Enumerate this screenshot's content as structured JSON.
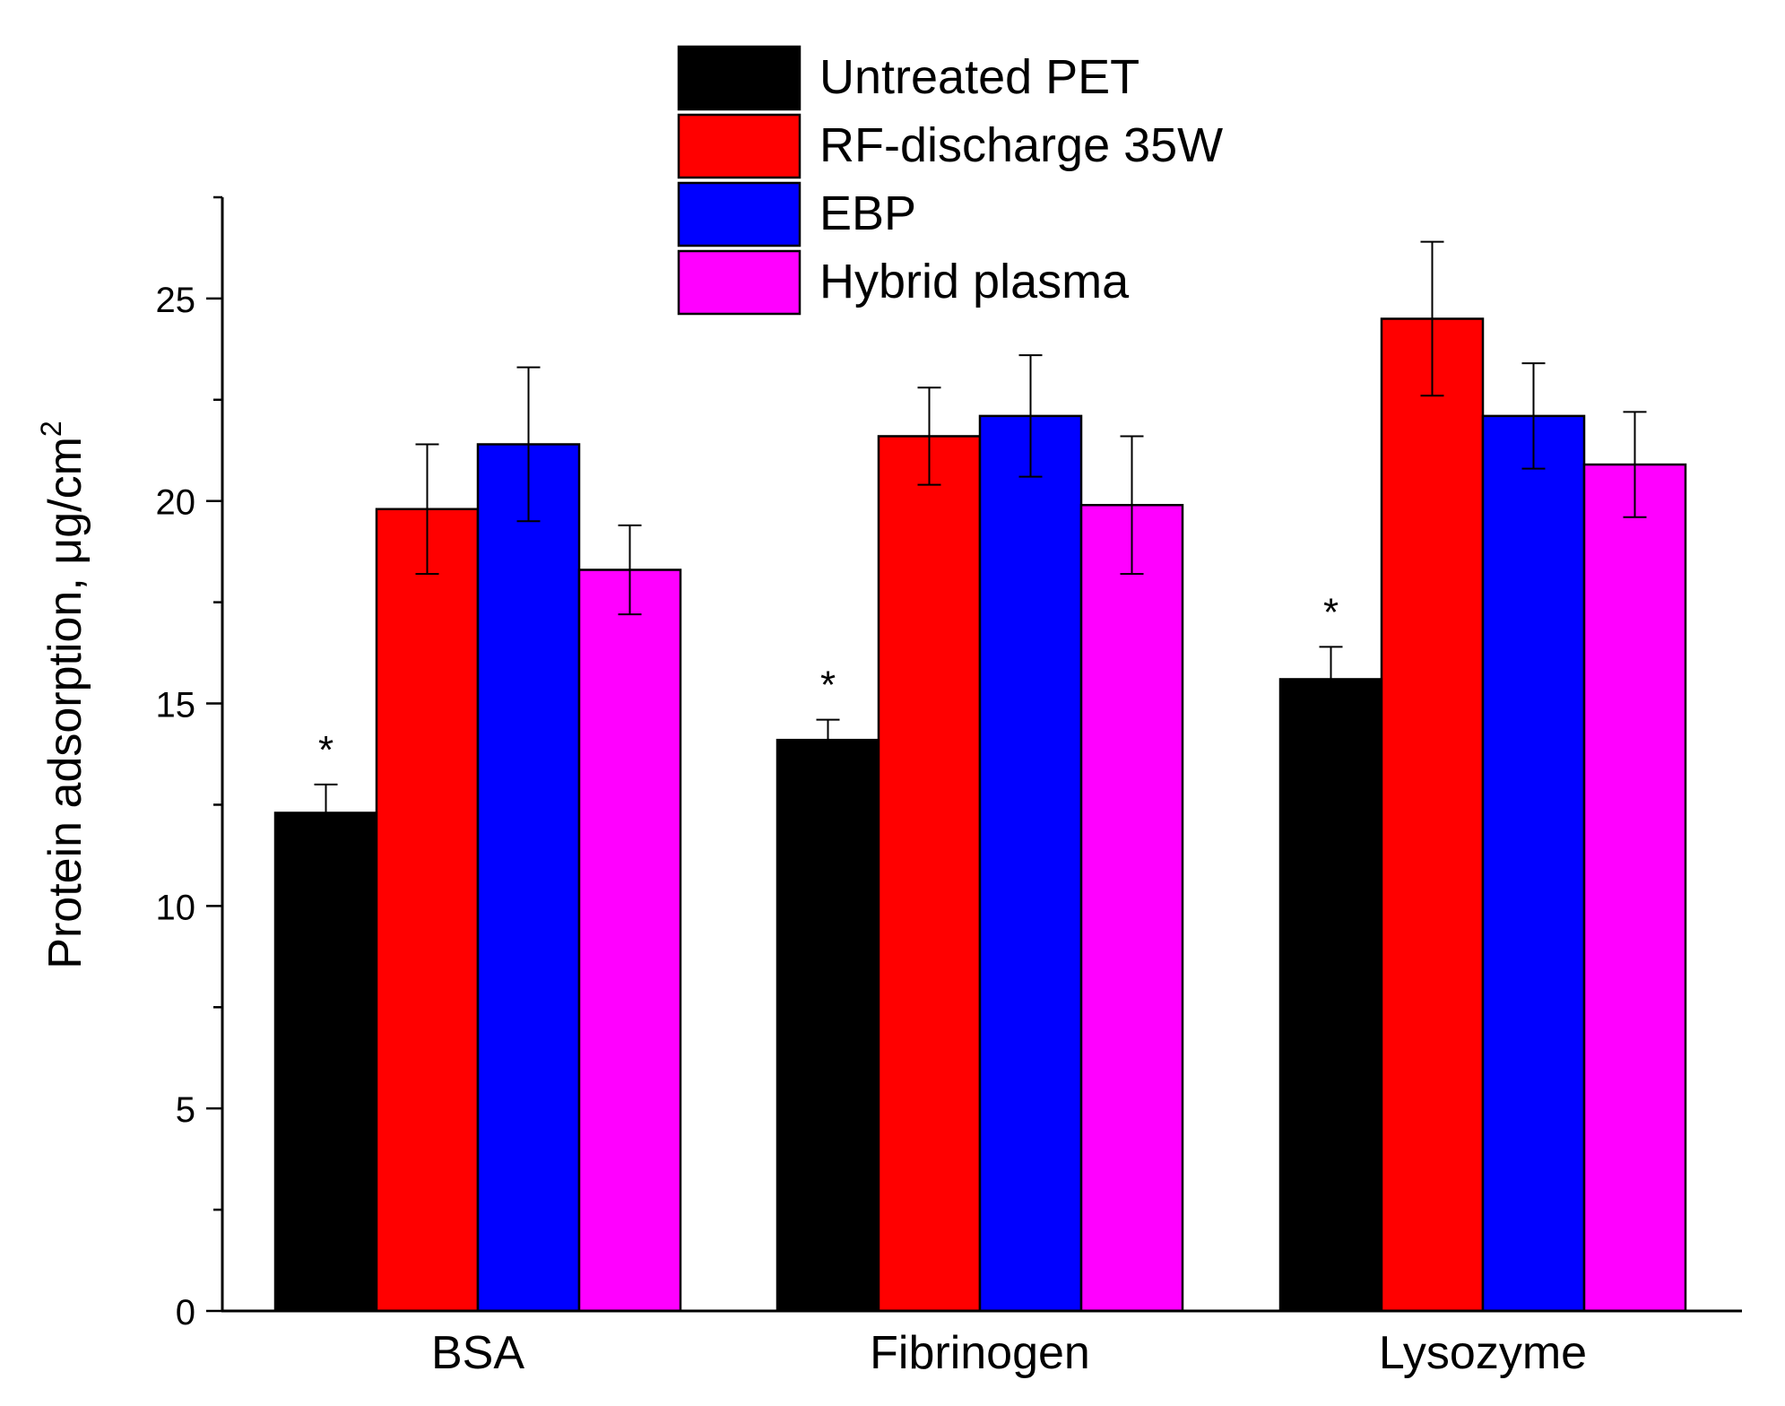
{
  "chart_data": {
    "type": "bar",
    "title": "",
    "xlabel": "",
    "ylabel": "Protein adsorption, μg/cm",
    "ylabel_superscript": "2",
    "categories": [
      "BSA",
      "Fibrinogen",
      "Lysozyme"
    ],
    "ylim": [
      0,
      27.5
    ],
    "yticks": [
      0,
      5,
      10,
      15,
      20,
      25
    ],
    "yticks_minor": [
      2.5,
      7.5,
      12.5,
      17.5,
      22.5,
      27.5
    ],
    "legend_position": "top-center",
    "series": [
      {
        "name": "Untreated PET",
        "color": "#000000",
        "values": [
          12.3,
          14.1,
          15.6
        ],
        "errors": [
          0.7,
          0.5,
          0.8
        ],
        "significance": [
          "*",
          "*",
          "*"
        ]
      },
      {
        "name": "RF-discharge 35W",
        "color": "#ff0000",
        "values": [
          19.8,
          21.6,
          24.5
        ],
        "errors": [
          1.6,
          1.2,
          1.9
        ],
        "significance": [
          "",
          "",
          ""
        ]
      },
      {
        "name": "EBP",
        "color": "#0000ff",
        "values": [
          21.4,
          22.1,
          22.1
        ],
        "errors": [
          1.9,
          1.5,
          1.3
        ],
        "significance": [
          "",
          "",
          ""
        ]
      },
      {
        "name": "Hybrid plasma",
        "color": "#ff00ff",
        "values": [
          18.3,
          19.9,
          20.9
        ],
        "errors": [
          1.1,
          1.7,
          1.3
        ],
        "significance": [
          "",
          "",
          ""
        ]
      }
    ]
  }
}
